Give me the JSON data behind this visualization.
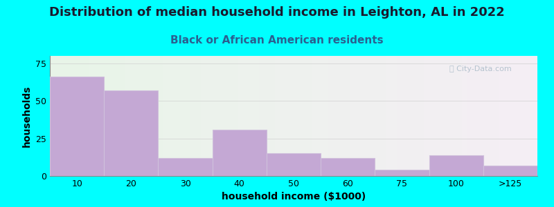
{
  "title": "Distribution of median household income in Leighton, AL in 2022",
  "subtitle": "Black or African American residents",
  "xlabel": "household income ($1000)",
  "ylabel": "households",
  "background_color": "#00FFFF",
  "plot_bg_gradient_left": "#e8f5e8",
  "plot_bg_gradient_right": "#f5eef5",
  "bar_color": "#c4a8d4",
  "bar_edge_color": "#d0c0dc",
  "categories": [
    "10",
    "20",
    "30",
    "40",
    "50",
    "60",
    "75",
    "100",
    ">125"
  ],
  "values": [
    66,
    57,
    12,
    31,
    15,
    12,
    4,
    14,
    7
  ],
  "ylim": [
    0,
    80
  ],
  "yticks": [
    0,
    25,
    50,
    75
  ],
  "title_fontsize": 13,
  "subtitle_fontsize": 11,
  "axis_label_fontsize": 10,
  "tick_fontsize": 9,
  "title_color": "#1a1a2e",
  "subtitle_color": "#2a6090",
  "watermark_text": "ⓘ City-Data.com",
  "watermark_color": "#aabbc8"
}
